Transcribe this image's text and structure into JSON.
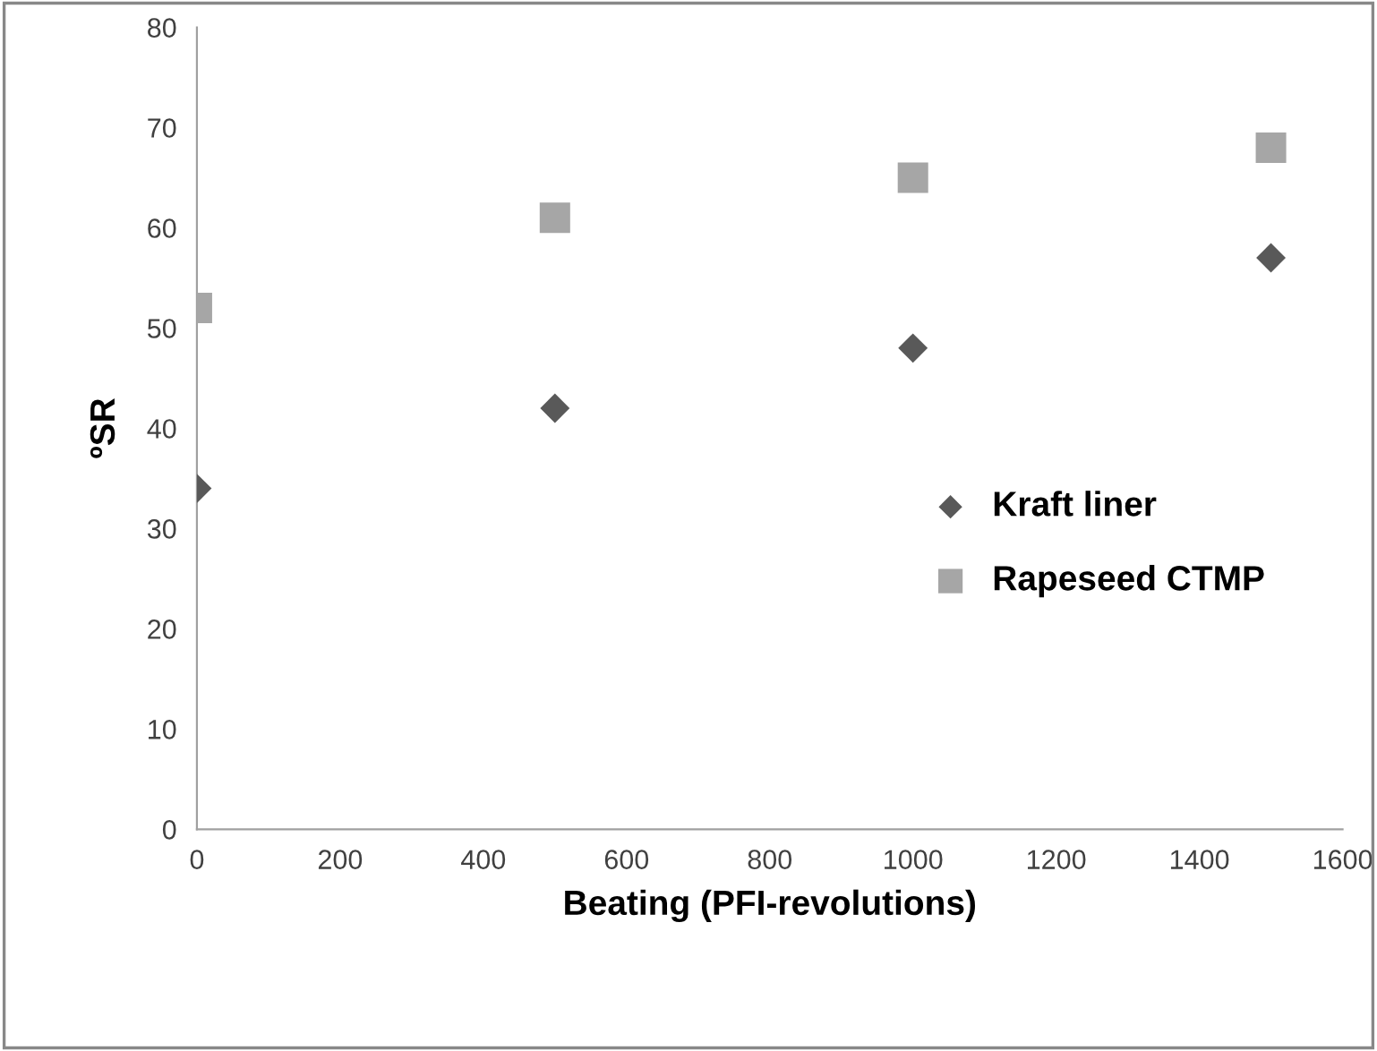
{
  "chart_data": {
    "type": "scatter",
    "xlabel": "Beating (PFI-revolutions)",
    "ylabel": "ºSR",
    "x": [
      0,
      500,
      1000,
      1500
    ],
    "series": [
      {
        "name": "Kraft liner",
        "color": "#595959",
        "marker": "diamond",
        "values": [
          34,
          42,
          48,
          57
        ]
      },
      {
        "name": "Rapeseed CTMP",
        "color": "#a6a6a6",
        "marker": "square",
        "values": [
          52,
          61,
          65,
          68
        ]
      }
    ],
    "xlim": [
      0,
      1600
    ],
    "xticks": [
      0,
      200,
      400,
      600,
      800,
      1000,
      1200,
      1400,
      1600
    ],
    "ylim": [
      0,
      80
    ],
    "yticks": [
      0,
      10,
      20,
      30,
      40,
      50,
      60,
      70,
      80
    ],
    "grid": false,
    "legend": "right"
  }
}
